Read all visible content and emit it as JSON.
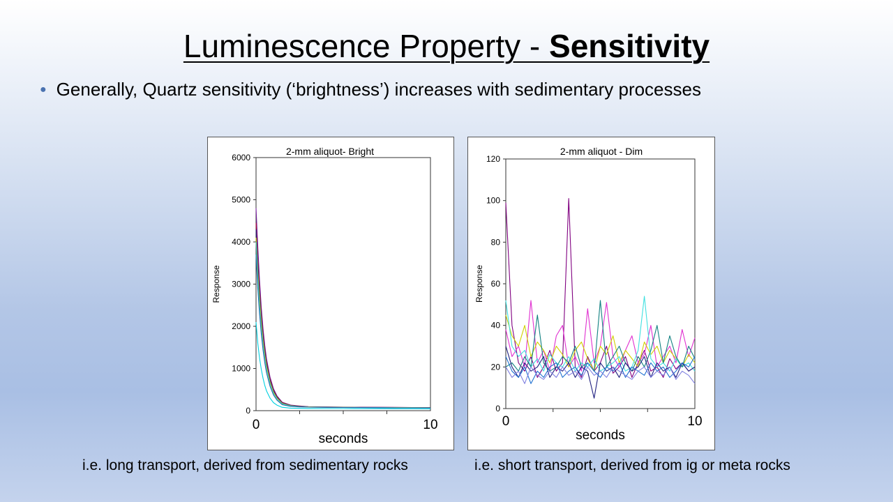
{
  "slide": {
    "title_main": "Luminescence Property - ",
    "title_bold": "Sensitivity",
    "bullet": "Generally, Quartz sensitivity (‘brightness’) increases with sedimentary processes",
    "caption_left": "i.e. long transport, derived from sedimentary rocks",
    "caption_right": "i.e. short transport, derived from ig or meta rocks"
  },
  "chart_data": [
    {
      "type": "line",
      "title": "2-mm aliquot- Bright",
      "xlabel": "seconds",
      "ylabel": "Response",
      "xlim": [
        0,
        10
      ],
      "ylim": [
        0,
        6000
      ],
      "x_tick_labels": [
        "0",
        "10"
      ],
      "y_ticks": [
        0,
        1000,
        2000,
        3000,
        4000,
        5000,
        6000
      ],
      "grid": false,
      "legend": "none",
      "x": [
        0,
        0.1,
        0.2,
        0.3,
        0.4,
        0.5,
        0.6,
        0.8,
        1.0,
        1.2,
        1.5,
        2.0,
        2.5,
        3.0,
        4.0,
        5.0,
        6.0,
        7.0,
        8.0,
        9.0,
        10.0
      ],
      "series": [
        {
          "color": "#7a1fa2",
          "values": [
            4800,
            3900,
            3100,
            2450,
            1950,
            1550,
            1230,
            800,
            520,
            350,
            200,
            130,
            110,
            95,
            90,
            85,
            80,
            80,
            78,
            75,
            75
          ]
        },
        {
          "color": "#b01030",
          "values": [
            4450,
            3600,
            2900,
            2300,
            1830,
            1460,
            1160,
            750,
            490,
            330,
            190,
            125,
            105,
            92,
            88,
            82,
            80,
            78,
            76,
            74,
            72
          ]
        },
        {
          "color": "#202080",
          "values": [
            4300,
            3480,
            2800,
            2220,
            1770,
            1410,
            1120,
            720,
            470,
            320,
            180,
            120,
            100,
            90,
            85,
            80,
            78,
            76,
            74,
            72,
            70
          ]
        },
        {
          "color": "#d0d000",
          "values": [
            4100,
            3300,
            2650,
            2100,
            1670,
            1330,
            1060,
            680,
            440,
            300,
            170,
            115,
            95,
            88,
            82,
            78,
            75,
            74,
            72,
            70,
            68
          ]
        },
        {
          "color": "#40c0c0",
          "values": [
            4000,
            3150,
            2500,
            1980,
            1570,
            1250,
            990,
            640,
            410,
            280,
            160,
            110,
            92,
            85,
            80,
            76,
            74,
            72,
            70,
            68,
            66
          ]
        },
        {
          "color": "#1f70b0",
          "values": [
            3700,
            2900,
            2300,
            1820,
            1440,
            1140,
            900,
            580,
            370,
            250,
            140,
            100,
            88,
            82,
            78,
            74,
            72,
            70,
            68,
            66,
            65
          ]
        },
        {
          "color": "#00d0e0",
          "values": [
            2100,
            1600,
            1250,
            980,
            770,
            600,
            470,
            300,
            190,
            130,
            80,
            60,
            55,
            52,
            50,
            50,
            48,
            48,
            47,
            46,
            45
          ]
        }
      ]
    },
    {
      "type": "line",
      "title": "2-mm aliquot - Dim",
      "xlabel": "seconds",
      "ylabel": "Response",
      "xlim": [
        0,
        10
      ],
      "ylim": [
        0,
        120
      ],
      "x_tick_labels": [
        "0",
        "10"
      ],
      "y_ticks": [
        0,
        20,
        40,
        60,
        80,
        100,
        120
      ],
      "grid": false,
      "legend": "none",
      "x": [
        0,
        0.33,
        0.67,
        1.0,
        1.33,
        1.67,
        2.0,
        2.33,
        2.67,
        3.0,
        3.33,
        3.67,
        4.0,
        4.33,
        4.67,
        5.0,
        5.33,
        5.67,
        6.0,
        6.33,
        6.67,
        7.0,
        7.33,
        7.67,
        8.0,
        8.33,
        8.67,
        9.0,
        9.33,
        9.67,
        10.0
      ],
      "series": [
        {
          "color": "#800080",
          "values": [
            99,
            40,
            22,
            18,
            25,
            15,
            20,
            28,
            18,
            22,
            101,
            20,
            15,
            25,
            18,
            22,
            30,
            17,
            20,
            25,
            15,
            22,
            28,
            18,
            20,
            15,
            24,
            19,
            22,
            18,
            20
          ]
        },
        {
          "color": "#e030d0",
          "values": [
            38,
            25,
            30,
            20,
            52,
            22,
            28,
            18,
            35,
            40,
            20,
            25,
            18,
            48,
            22,
            30,
            51,
            25,
            20,
            28,
            35,
            22,
            26,
            40,
            20,
            25,
            30,
            22,
            38,
            25,
            34
          ]
        },
        {
          "color": "#d0d000",
          "values": [
            45,
            35,
            30,
            40,
            25,
            32,
            28,
            22,
            30,
            26,
            20,
            28,
            32,
            24,
            18,
            30,
            26,
            35,
            22,
            28,
            24,
            20,
            32,
            26,
            30,
            22,
            28,
            24,
            20,
            26,
            22
          ]
        },
        {
          "color": "#40e0e0",
          "values": [
            52,
            30,
            25,
            28,
            20,
            24,
            18,
            26,
            22,
            20,
            25,
            18,
            22,
            20,
            24,
            18,
            20,
            22,
            25,
            18,
            20,
            28,
            54,
            24,
            20,
            22,
            18,
            24,
            20,
            22,
            18
          ]
        },
        {
          "color": "#108080",
          "values": [
            20,
            22,
            18,
            25,
            20,
            45,
            22,
            18,
            20,
            25,
            22,
            30,
            20,
            22,
            18,
            52,
            20,
            25,
            30,
            22,
            18,
            25,
            20,
            28,
            40,
            22,
            35,
            25,
            20,
            30,
            24
          ]
        },
        {
          "color": "#202080",
          "values": [
            30,
            20,
            15,
            22,
            18,
            20,
            25,
            15,
            20,
            18,
            22,
            15,
            20,
            18,
            5,
            22,
            18,
            20,
            15,
            22,
            18,
            20,
            25,
            15,
            22,
            18,
            20,
            15,
            22,
            18,
            20
          ]
        },
        {
          "color": "#1f70d0",
          "values": [
            25,
            18,
            15,
            20,
            12,
            18,
            15,
            20,
            22,
            15,
            18,
            20,
            16,
            22,
            18,
            15,
            20,
            18,
            22,
            15,
            20,
            18,
            16,
            22,
            18,
            20,
            15,
            18,
            22,
            20,
            25
          ]
        },
        {
          "color": "#8080e0",
          "values": [
            20,
            15,
            18,
            12,
            20,
            16,
            14,
            18,
            15,
            20,
            16,
            18,
            14,
            20,
            16,
            18,
            15,
            20,
            18,
            16,
            14,
            18,
            20,
            15,
            18,
            16,
            20,
            14,
            18,
            16,
            12
          ]
        }
      ]
    }
  ]
}
